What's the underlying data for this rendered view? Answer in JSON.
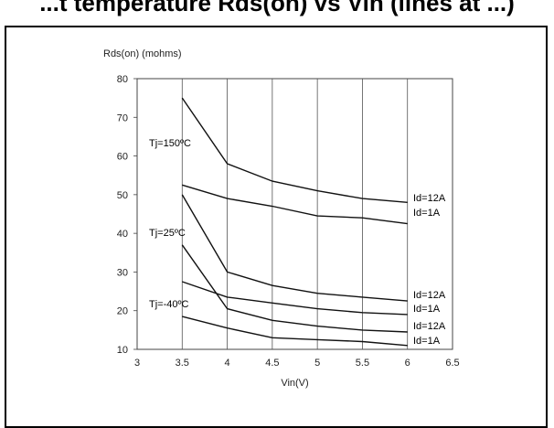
{
  "page": {
    "title": "...t temperature Rds(on) vs Vin (lines at ...)"
  },
  "chart_data": {
    "type": "line",
    "ylabel": "Rds(on) (mohms)",
    "xlabel": "Vin(V)",
    "xlim": [
      3,
      6.5
    ],
    "ylim": [
      10,
      80
    ],
    "xticks": [
      "3",
      "3.5",
      "4",
      "4.5",
      "5",
      "5.5",
      "6",
      "6.5"
    ],
    "yticks": [
      "10",
      "20",
      "30",
      "40",
      "50",
      "60",
      "70",
      "80"
    ],
    "grid": "vertical",
    "x": [
      3.5,
      4,
      4.5,
      5,
      5.5,
      6
    ],
    "series": [
      {
        "name": "Tj=150°C, Id=12A",
        "values": [
          75,
          58,
          53.5,
          51,
          49,
          48
        ]
      },
      {
        "name": "Tj=150°C, Id=1A",
        "values": [
          52.5,
          49,
          47,
          44.5,
          44,
          42.5
        ]
      },
      {
        "name": "Tj=25°C, Id=12A",
        "values": [
          50,
          30,
          26.5,
          24.5,
          23.5,
          22.5
        ]
      },
      {
        "name": "Tj=25°C, Id=1A",
        "values": [
          37,
          20.5,
          17.5,
          16,
          15,
          14.5
        ]
      },
      {
        "name": "Tj=-40°C, Id=12A",
        "values": [
          27.5,
          23.5,
          22,
          20.5,
          19.5,
          19
        ]
      },
      {
        "name": "Tj=-40°C, Id=1A",
        "values": [
          18.5,
          15.5,
          13,
          12.5,
          12,
          11
        ]
      }
    ],
    "annotations": {
      "temps": [
        "Tj=150ºC",
        "Tj=25ºC",
        "Tj=-40ºC"
      ],
      "id_labels": [
        "Id=12A",
        "Id=1A",
        "Id=12A",
        "Id=1A",
        "Id=12A",
        "Id=1A"
      ]
    }
  }
}
